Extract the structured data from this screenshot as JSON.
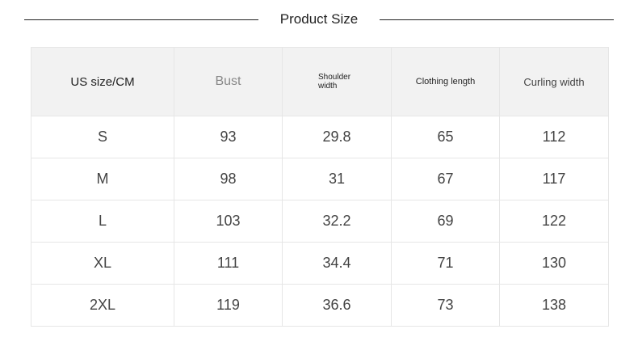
{
  "header": {
    "title": "Product Size"
  },
  "table": {
    "columns": [
      "US size/CM",
      "Bust",
      "Shoulder width",
      "Clothing length",
      "Curling width"
    ],
    "rows": [
      [
        "S",
        93,
        29.8,
        65,
        112
      ],
      [
        "M",
        98,
        31,
        67,
        117
      ],
      [
        "L",
        103,
        32.2,
        69,
        122
      ],
      [
        "XL",
        111,
        34.4,
        71,
        130
      ],
      [
        "2XL",
        119,
        36.6,
        73,
        138
      ]
    ]
  }
}
